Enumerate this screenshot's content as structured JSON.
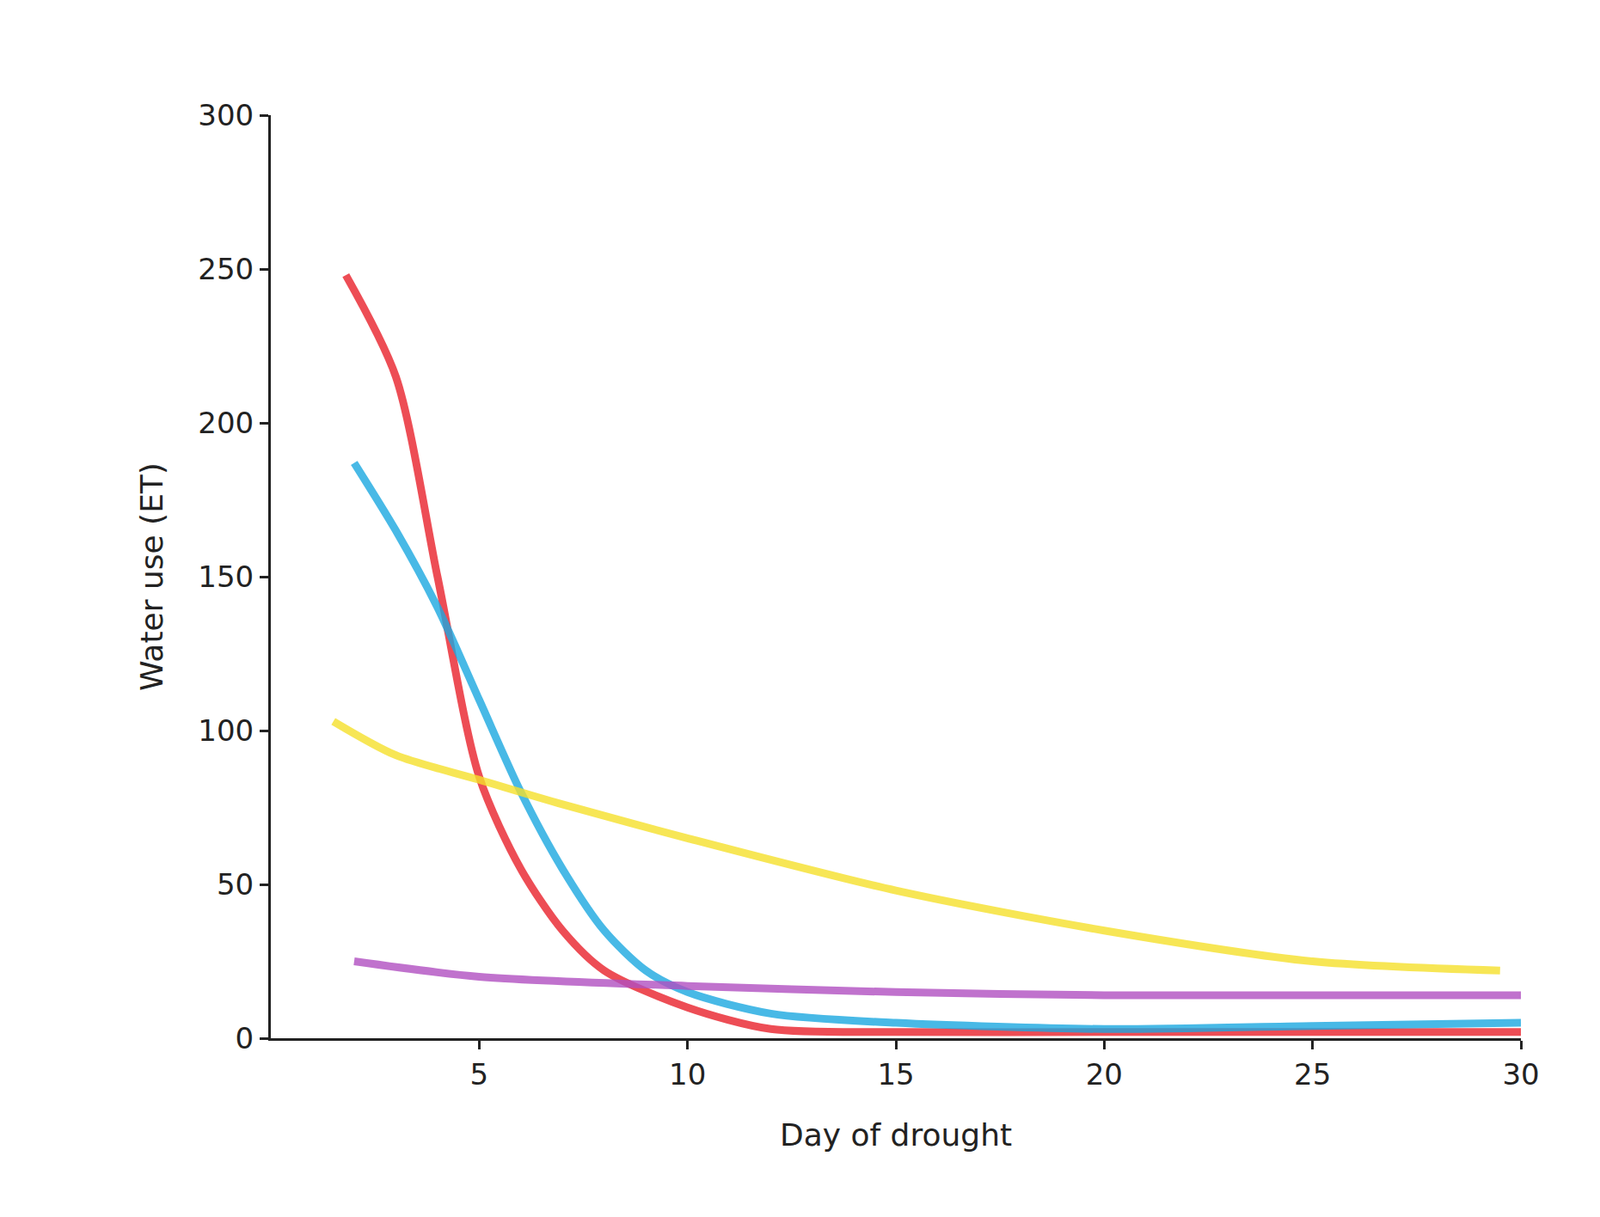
{
  "chart_data": {
    "type": "line",
    "xlabel": "Day of drought",
    "ylabel": "Water use (ET)",
    "xlim": [
      0,
      30
    ],
    "xticks": [
      5,
      10,
      15,
      20,
      25,
      30
    ],
    "ylim": [
      0,
      300
    ],
    "yticks": [
      0,
      50,
      100,
      150,
      200,
      250,
      300
    ],
    "grid": false,
    "series": [
      {
        "color": "#e8202a",
        "x": [
          1.8,
          3,
          4,
          5,
          6,
          7,
          8,
          10,
          12,
          15,
          20,
          25,
          30
        ],
        "values": [
          248,
          215,
          150,
          85,
          55,
          35,
          22,
          10,
          3,
          2,
          2,
          2,
          2
        ]
      },
      {
        "color": "#1aa7e0",
        "x": [
          2,
          3,
          4,
          5,
          6,
          7,
          8,
          9,
          10,
          12,
          15,
          20,
          25,
          30
        ],
        "values": [
          187,
          165,
          140,
          110,
          80,
          55,
          35,
          22,
          15,
          8,
          5,
          3,
          4,
          5
        ]
      },
      {
        "color": "#f5e02a",
        "x": [
          1.5,
          3,
          5,
          7,
          10,
          15,
          20,
          25,
          29.5
        ],
        "values": [
          103,
          92,
          84,
          76,
          65,
          48,
          35,
          25,
          22
        ]
      },
      {
        "color": "#b04fc0",
        "x": [
          2,
          5,
          10,
          15,
          20,
          25,
          30
        ],
        "values": [
          25,
          20,
          17,
          15,
          14,
          14,
          14
        ]
      }
    ]
  }
}
